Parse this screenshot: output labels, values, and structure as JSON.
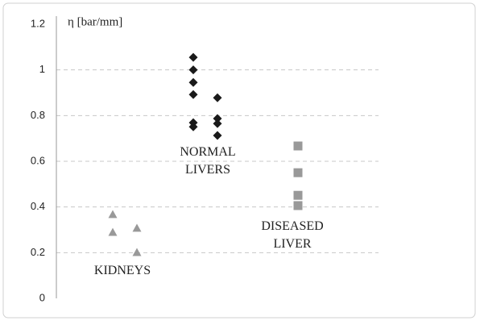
{
  "chart_data": {
    "type": "scatter",
    "y_label": "η [bar/mm]",
    "xlim": [
      0,
      4
    ],
    "ylim": [
      0,
      1.2
    ],
    "yticks": [
      0,
      0.2,
      0.4,
      0.6,
      0.8,
      1,
      1.2
    ],
    "grid": true,
    "series": [
      {
        "marker": "triangle",
        "color": "#999999",
        "x": [
          0.7,
          0.7,
          1.0,
          1.0
        ],
        "values": [
          0.367,
          0.289,
          0.307,
          0.201
        ]
      },
      {
        "marker": "diamond",
        "color": "#1a1a1a",
        "x": [
          1.7,
          1.7,
          1.7,
          1.7,
          1.7,
          1.7,
          2.0,
          2.0,
          2.0,
          2.0
        ],
        "values": [
          1.055,
          1.0,
          0.945,
          0.892,
          0.769,
          0.751,
          0.878,
          0.787,
          0.765,
          0.713
        ]
      },
      {
        "marker": "square",
        "color": "#999999",
        "x": [
          3.0,
          3.0,
          3.0,
          3.0
        ],
        "values": [
          0.667,
          0.55,
          0.451,
          0.406
        ]
      }
    ],
    "annotations": [
      {
        "lines": [
          "KIDNEYS"
        ]
      },
      {
        "lines": [
          "NORMAL",
          "LIVERS"
        ]
      },
      {
        "lines": [
          "DISEASED",
          "LIVER"
        ]
      }
    ]
  }
}
